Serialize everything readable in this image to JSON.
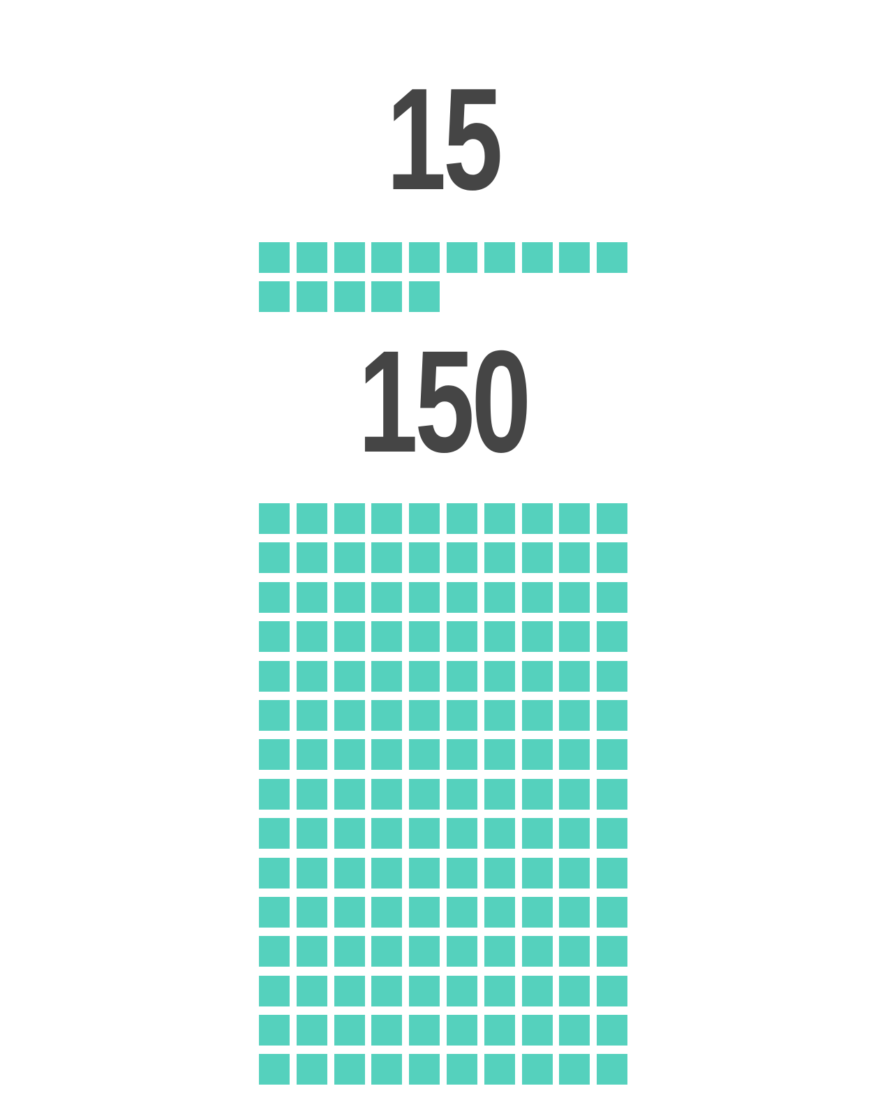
{
  "page": {
    "background": "#ffffff"
  },
  "colors": {
    "square": "#55d1bd",
    "number": "#454545"
  },
  "figures": [
    {
      "label": "15",
      "value": 15,
      "grid": {
        "columns": 10,
        "total_squares": 15,
        "full_rows": 1,
        "remainder_squares": 5
      }
    },
    {
      "label": "150",
      "value": 150,
      "grid": {
        "columns": 10,
        "total_squares": 150,
        "full_rows": 15,
        "remainder_squares": 0
      }
    }
  ],
  "chart_data": [
    {
      "type": "unit_square_pictograph",
      "title": "15",
      "value": 15,
      "unit_value": 1,
      "columns": 10,
      "squares_shown": 15,
      "square_color": "#55d1bd",
      "legend_position": "none",
      "gridlines": "off"
    },
    {
      "type": "unit_square_pictograph",
      "title": "150",
      "value": 150,
      "unit_value": 1,
      "columns": 10,
      "squares_shown": 150,
      "square_color": "#55d1bd",
      "legend_position": "none",
      "gridlines": "off"
    }
  ]
}
